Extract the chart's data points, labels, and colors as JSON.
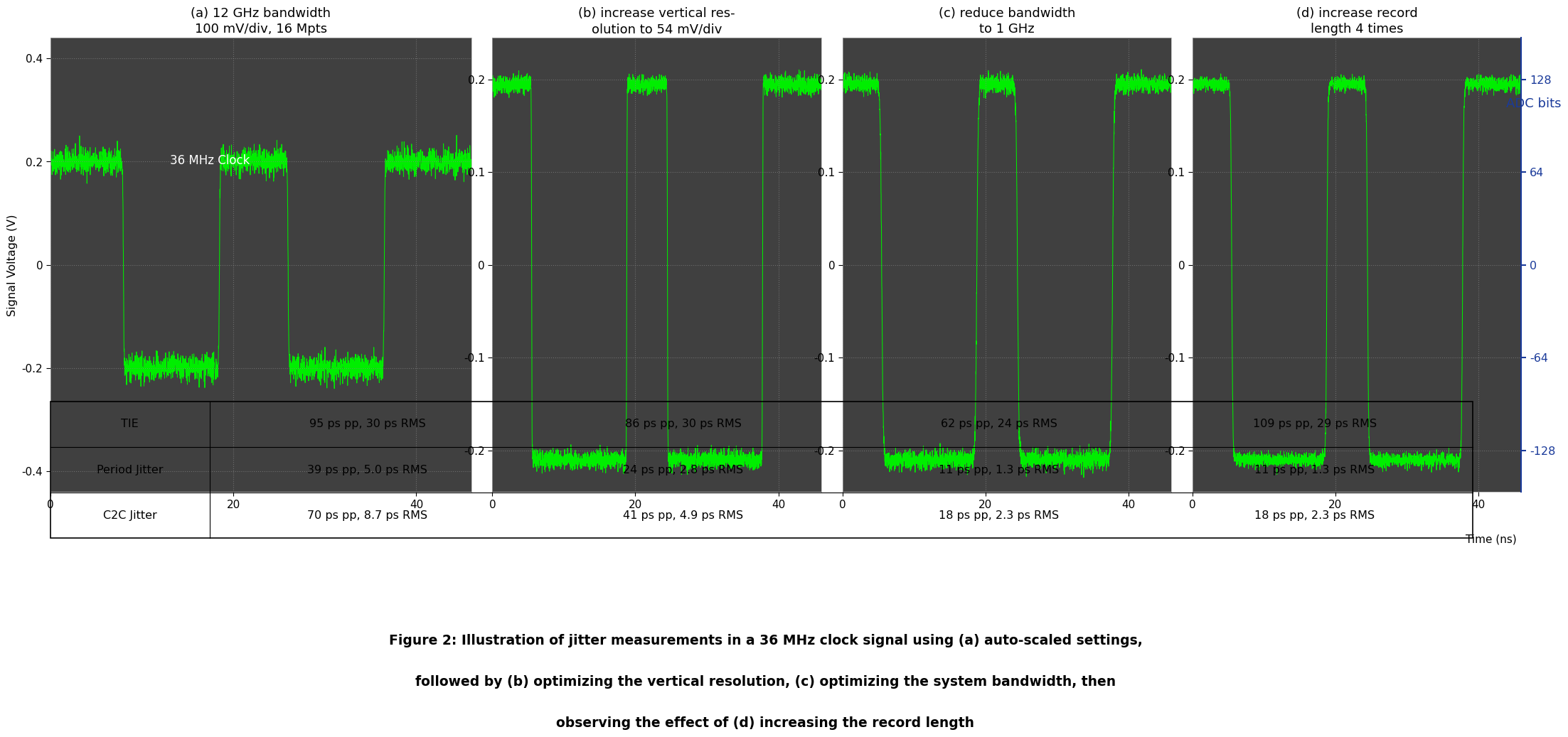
{
  "fig_width": 22.86,
  "fig_height": 12.04,
  "bg_color": "#ffffff",
  "plot_bg_color": "#404040",
  "signal_color": "#00ee00",
  "grid_color": "#888888",
  "subplot_titles": [
    "(a) 12 GHz bandwidth\n100 mV/div, 16 Mpts",
    "(b) increase vertical res-\nolution to 54 mV/div",
    "(c) reduce bandwidth\nto 1 GHz",
    "(d) increase record\nlength 4 times"
  ],
  "adc_title": "ADC bits",
  "adc_ticks": [
    128,
    64,
    0,
    -64,
    -128
  ],
  "adc_values": [
    0.2,
    0.1,
    0.0,
    -0.1,
    -0.2
  ],
  "xlabel": "Time (ns)",
  "ylabel": "Signal Voltage (V)",
  "clock_label": "36 MHz Clock",
  "ylim_a": [
    -0.44,
    0.44
  ],
  "ylim_bcd": [
    -0.245,
    0.245
  ],
  "yticks_a": [
    -0.4,
    -0.2,
    0.0,
    0.2,
    0.4
  ],
  "yticks_bcd": [
    -0.2,
    -0.1,
    0.0,
    0.1,
    0.2
  ],
  "xlim": [
    0,
    46
  ],
  "xticks": [
    0,
    20,
    40
  ],
  "table_rows": [
    "TIE",
    "Period Jitter",
    "C2C Jitter"
  ],
  "table_data": [
    [
      "95 ps pp, 30 ps RMS",
      "86 ps pp, 30 ps RMS",
      "62 ps pp, 24 ps RMS",
      "109 ps pp, 29 ps RMS"
    ],
    [
      "39 ps pp, 5.0 ps RMS",
      "24 ps pp, 2.8 ps RMS",
      "11 ps pp, 1.3 ps RMS",
      "11 ps pp, 1.3 ps RMS"
    ],
    [
      "70 ps pp, 8.7 ps RMS",
      "41 ps pp, 4.9 ps RMS",
      "18 ps pp, 2.3 ps RMS",
      "18 ps pp, 2.3 ps RMS"
    ]
  ],
  "caption_line1": "Figure 2: Illustration of jitter measurements in a 36 MHz clock signal using (a) auto-scaled settings,",
  "caption_line2": "followed by (b) optimizing the vertical resolution, (c) optimizing the system bandwidth, then",
  "caption_line3": "observing the effect of (d) increasing the record length",
  "title_fontsize": 13,
  "axis_fontsize": 11,
  "table_fontsize": 11.5,
  "caption_fontsize": 13.5,
  "adc_color": "#1a3a9a"
}
